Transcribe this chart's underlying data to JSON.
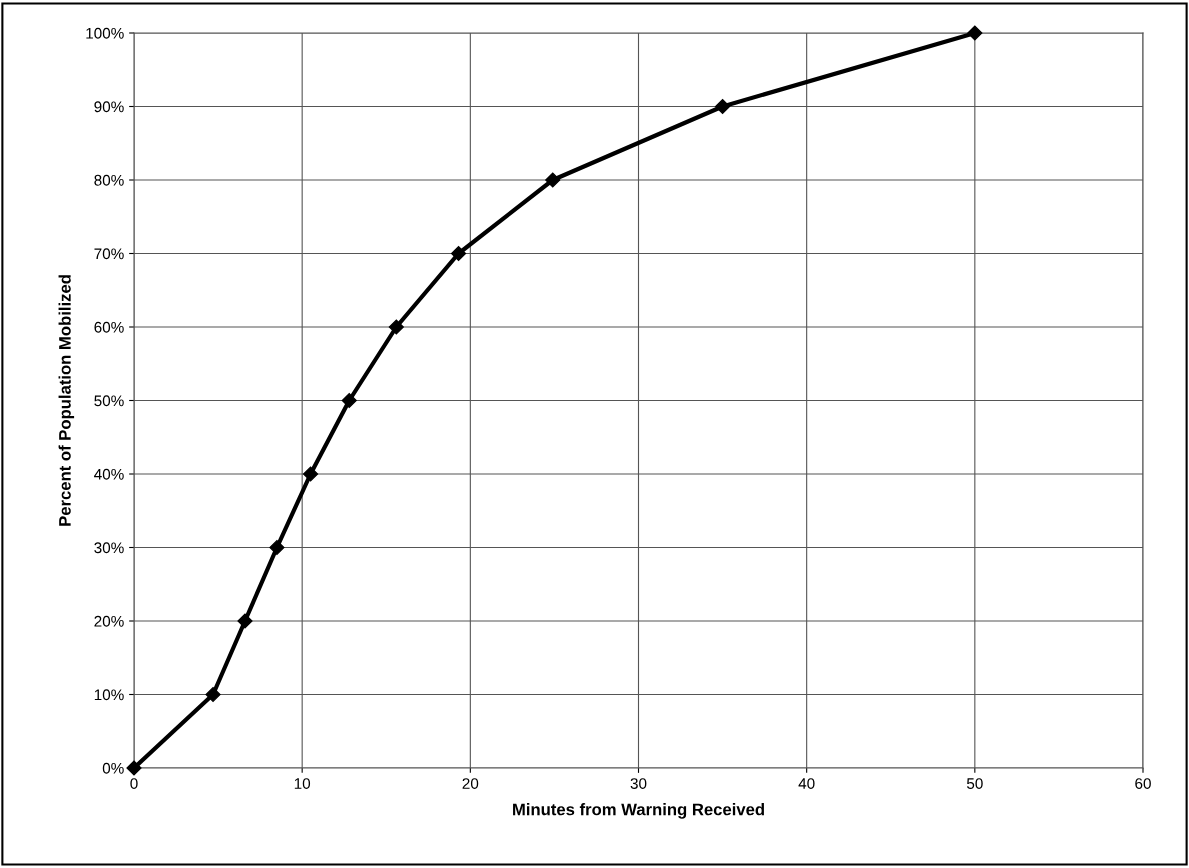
{
  "chart_data": {
    "type": "line",
    "xlabel": "Minutes from Warning Received",
    "ylabel": "Percent of Population Mobilized",
    "x": [
      0,
      4.7,
      6.6,
      8.5,
      10.5,
      12.8,
      15.6,
      19.3,
      24.9,
      35.0,
      50.0
    ],
    "series": [
      {
        "color": "#000000",
        "values": [
          0,
          10,
          20,
          30,
          40,
          50,
          60,
          70,
          80,
          90,
          100
        ]
      }
    ],
    "xlim": [
      0,
      60
    ],
    "xticks": [
      0,
      10,
      20,
      30,
      40,
      50,
      60
    ],
    "ylim": [
      0,
      100
    ],
    "yticks": [
      {
        "value": 0,
        "label": "0%"
      },
      {
        "value": 10,
        "label": "10%"
      },
      {
        "value": 20,
        "label": "20%"
      },
      {
        "value": 30,
        "label": "30%"
      },
      {
        "value": 40,
        "label": "40%"
      },
      {
        "value": 50,
        "label": "50%"
      },
      {
        "value": 60,
        "label": "60%"
      },
      {
        "value": 70,
        "label": "70%"
      },
      {
        "value": 80,
        "label": "80%"
      },
      {
        "value": 90,
        "label": "90%"
      },
      {
        "value": 100,
        "label": "100%"
      }
    ],
    "grid": true,
    "marker": "diamond",
    "line_style": "solid"
  }
}
